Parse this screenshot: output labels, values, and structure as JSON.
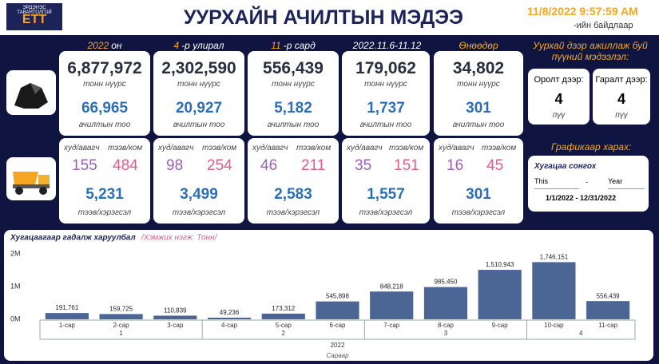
{
  "header": {
    "logo_text": "ЭРДЭНЭС ТАВАНТОЛГОЙ",
    "logo_abbr": "ЕТТ",
    "title": "УУРХАЙН АЧИЛТЫН МЭДЭЭ",
    "datetime": "11/8/2022 9:57:59 AM",
    "datetime_note": "-ийн байдлаар"
  },
  "labels": {
    "coal_unit": "тонн нүүрс",
    "loads_unit": "ачилтын тоо",
    "trucks1": "худ/авагч",
    "trucks2": "тээв/ком",
    "vehicles_unit": "тээв/хэрэгсэл"
  },
  "periods": [
    {
      "highlight": "2022",
      "rest": "он",
      "coal": "6,877,972",
      "loads": "66,965",
      "trucks1": "155",
      "trucks2": "484",
      "vehicles": "5,231"
    },
    {
      "highlight": "4",
      "rest": "-р улирал",
      "coal": "2,302,590",
      "loads": "20,927",
      "trucks1": "98",
      "trucks2": "254",
      "vehicles": "3,499"
    },
    {
      "highlight": "11",
      "rest": "-р сард",
      "coal": "556,439",
      "loads": "5,182",
      "trucks1": "46",
      "trucks2": "211",
      "vehicles": "2,583"
    },
    {
      "rest": "2022.11.6-11.12",
      "coal": "179,062",
      "loads": "1,737",
      "trucks1": "35",
      "trucks2": "151",
      "vehicles": "1,557"
    },
    {
      "highlight": "Өнөөдөр",
      "coal": "34,802",
      "loads": "301",
      "trucks1": "16",
      "trucks2": "45",
      "vehicles": "301"
    }
  ],
  "firms": {
    "title": "Уурхай дээр ажиллаж буй пүүний мэдээлэл:",
    "entry_label": "Оролт дээр:",
    "entry_value": "4",
    "exit_label": "Гаралт дээр:",
    "exit_value": "4",
    "unit": "пүү"
  },
  "graph_link": "Графикаар харах:",
  "slicer": {
    "title": "Хугацаа сонгох",
    "option1": "This",
    "separator": "-",
    "option2": "Year",
    "range": "1/1/2022 - 12/31/2022"
  },
  "chart_data": {
    "type": "bar",
    "title": "Хугацаагаар гадалж харуулбал",
    "subtitle": "/Хэмжих нэгж: Тонн/",
    "color": "#4b6595",
    "groups": [
      {
        "label": "1",
        "categories": [
          "1-сар",
          "2-сар",
          "3-сар"
        ]
      },
      {
        "label": "2",
        "categories": [
          "4-сар",
          "5-сар",
          "6-сар"
        ]
      },
      {
        "label": "3",
        "categories": [
          "7-сар",
          "8-сар",
          "9-сар"
        ]
      },
      {
        "label": "4",
        "categories": [
          "10-сар",
          "11-сар"
        ]
      }
    ],
    "year": "2022",
    "xlabel": "Сараар",
    "values": [
      191761,
      159725,
      110839,
      49236,
      173312,
      545898,
      848218,
      985450,
      1510943,
      1746151,
      556439
    ],
    "value_labels": [
      "191,761",
      "159,725",
      "110,839",
      "49,236",
      "173,312",
      "545,898",
      "848,218",
      "985,450",
      "1,510,943",
      "1,746,151",
      "556,439"
    ],
    "ylim": [
      0,
      2000000
    ],
    "yticks": [
      {
        "value": 0,
        "label": "0M"
      },
      {
        "value": 1000000,
        "label": "1M"
      },
      {
        "value": 2000000,
        "label": "2M"
      }
    ]
  }
}
